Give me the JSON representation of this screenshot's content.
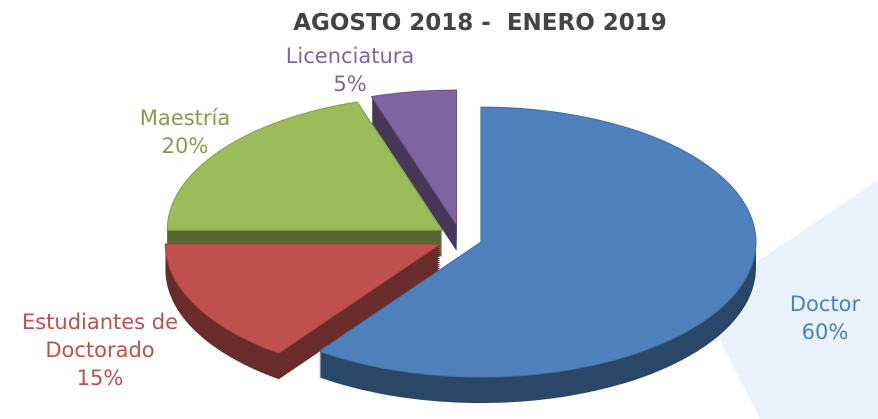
{
  "chart_data": {
    "type": "pie",
    "title": "AGOSTO 2018 -  ENERO 2019",
    "categories": [
      "Doctor",
      "Estudiantes de Doctorado",
      "Maestría",
      "Licenciatura"
    ],
    "values": [
      60,
      15,
      20,
      5
    ],
    "value_labels": [
      "60%",
      "15%",
      "20%",
      "5%"
    ],
    "colors": [
      "#4f81bd",
      "#c0504d",
      "#9bbb59",
      "#8064a2"
    ]
  }
}
